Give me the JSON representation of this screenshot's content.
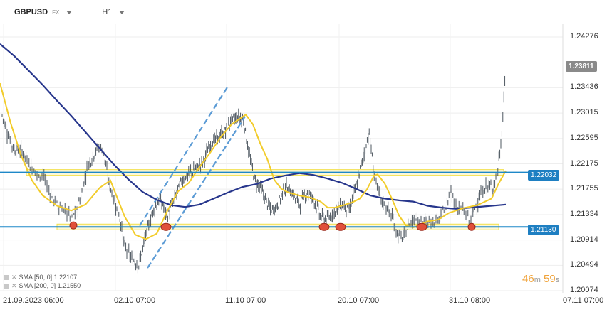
{
  "header": {
    "symbol": "GBPUSD",
    "instrument_type": "FX",
    "timeframe": "H1"
  },
  "y_axis_labels": [
    "1.24276",
    "1.23436",
    "1.23015",
    "1.22595",
    "1.22175",
    "1.21755",
    "1.21334",
    "1.20914",
    "1.20494",
    "1.20074"
  ],
  "x_axis_labels": [
    "21.09.2023  06:00",
    "02.10  07:00",
    "11.10  07:00",
    "20.10  07:00",
    "31.10  08:00",
    "07.11  07:00"
  ],
  "price_tags": {
    "current": "1.23811",
    "upper_level": "1.22032",
    "lower_level": "1.21130"
  },
  "legend": {
    "sma50": "SMA  [50,  0]  1.22107",
    "sma200": "SMA  [200,  0]  1.21550"
  },
  "countdown": {
    "minutes": "46",
    "m": "m",
    "seconds": "59",
    "s": "s"
  },
  "colors": {
    "candles": "#3c4650",
    "sma50": "#f2cc2b",
    "sma200": "#27368c",
    "level_lines": "#1e88c8",
    "zones": "#f2e04a",
    "channel": "#5b9bd5",
    "markers": "#e0503a"
  },
  "chart_data": {
    "type": "line",
    "xlabel": "",
    "ylabel": "",
    "ylim": [
      1.20074,
      1.24486
    ],
    "current_price": 1.23811,
    "horizontal_levels": [
      1.22032,
      1.2113
    ],
    "series": [
      {
        "name": "SMA [50, 0]",
        "last_value": 1.22107,
        "points": [
          [
            0,
            1.2351
          ],
          [
            15,
            1.2285
          ],
          [
            30,
            1.223
          ],
          [
            45,
            1.219
          ],
          [
            60,
            1.2165
          ],
          [
            80,
            1.2148
          ],
          [
            100,
            1.214
          ],
          [
            120,
            1.215
          ],
          [
            140,
            1.2178
          ],
          [
            155,
            1.219
          ],
          [
            165,
            1.216
          ],
          [
            175,
            1.213
          ],
          [
            190,
            1.21
          ],
          [
            205,
            1.2093
          ],
          [
            220,
            1.2102
          ],
          [
            235,
            1.214
          ],
          [
            250,
            1.2172
          ],
          [
            265,
            1.2186
          ],
          [
            280,
            1.2212
          ],
          [
            295,
            1.2236
          ],
          [
            310,
            1.2262
          ],
          [
            325,
            1.2283
          ],
          [
            345,
            1.2299
          ],
          [
            355,
            1.2283
          ],
          [
            365,
            1.2252
          ],
          [
            375,
            1.2226
          ],
          [
            385,
            1.2191
          ],
          [
            395,
            1.2176
          ],
          [
            405,
            1.217
          ],
          [
            420,
            1.2165
          ],
          [
            435,
            1.2162
          ],
          [
            450,
            1.2155
          ],
          [
            460,
            1.2145
          ],
          [
            470,
            1.2145
          ],
          [
            485,
            1.215
          ],
          [
            495,
            1.2154
          ],
          [
            505,
            1.216
          ],
          [
            515,
            1.2175
          ],
          [
            525,
            1.2198
          ],
          [
            530,
            1.22
          ],
          [
            540,
            1.2185
          ],
          [
            550,
            1.216
          ],
          [
            560,
            1.2132
          ],
          [
            570,
            1.2115
          ],
          [
            580,
            1.2112
          ],
          [
            590,
            1.2117
          ],
          [
            600,
            1.2122
          ],
          [
            615,
            1.2125
          ],
          [
            630,
            1.2136
          ],
          [
            650,
            1.2144
          ],
          [
            670,
            1.2149
          ],
          [
            690,
            1.216
          ],
          [
            700,
            1.2185
          ],
          [
            710,
            1.2206
          ]
        ]
      },
      {
        "name": "SMA [200, 0]",
        "last_value": 1.2155,
        "points": [
          [
            0,
            1.2416
          ],
          [
            20,
            1.2396
          ],
          [
            40,
            1.2372
          ],
          [
            60,
            1.2348
          ],
          [
            80,
            1.2322
          ],
          [
            100,
            1.2297
          ],
          [
            120,
            1.227
          ],
          [
            140,
            1.2243
          ],
          [
            160,
            1.2216
          ],
          [
            180,
            1.2192
          ],
          [
            200,
            1.2171
          ],
          [
            220,
            1.2158
          ],
          [
            240,
            1.2149
          ],
          [
            260,
            1.2146
          ],
          [
            280,
            1.215
          ],
          [
            300,
            1.216
          ],
          [
            320,
            1.217
          ],
          [
            340,
            1.2179
          ],
          [
            360,
            1.2184
          ],
          [
            380,
            1.2193
          ],
          [
            400,
            1.2198
          ],
          [
            420,
            1.2202
          ],
          [
            440,
            1.2199
          ],
          [
            460,
            1.2193
          ],
          [
            480,
            1.2186
          ],
          [
            500,
            1.2176
          ],
          [
            520,
            1.2165
          ],
          [
            540,
            1.216
          ],
          [
            560,
            1.2157
          ],
          [
            580,
            1.2155
          ],
          [
            600,
            1.2148
          ],
          [
            620,
            1.2145
          ],
          [
            640,
            1.2143
          ],
          [
            660,
            1.2145
          ],
          [
            680,
            1.2147
          ],
          [
            700,
            1.2149
          ],
          [
            710,
            1.215
          ]
        ]
      },
      {
        "name": "price",
        "points": [
          [
            0,
            1.231
          ],
          [
            10,
            1.227
          ],
          [
            20,
            1.224
          ],
          [
            30,
            1.224
          ],
          [
            40,
            1.222
          ],
          [
            50,
            1.22
          ],
          [
            60,
            1.22
          ],
          [
            70,
            1.217
          ],
          [
            80,
            1.215
          ],
          [
            90,
            1.214
          ],
          [
            100,
            1.213
          ],
          [
            108,
            1.214
          ],
          [
            115,
            1.217
          ],
          [
            122,
            1.221
          ],
          [
            130,
            1.223
          ],
          [
            138,
            1.2245
          ],
          [
            145,
            1.224
          ],
          [
            152,
            1.219
          ],
          [
            160,
            1.216
          ],
          [
            168,
            1.213
          ],
          [
            175,
            1.208
          ],
          [
            185,
            1.206
          ],
          [
            195,
            1.205
          ],
          [
            205,
            1.21
          ],
          [
            215,
            1.214
          ],
          [
            225,
            1.216
          ],
          [
            235,
            1.213
          ],
          [
            245,
            1.216
          ],
          [
            255,
            1.219
          ],
          [
            265,
            1.22
          ],
          [
            275,
            1.221
          ],
          [
            285,
            1.222
          ],
          [
            295,
            1.225
          ],
          [
            305,
            1.226
          ],
          [
            315,
            1.227
          ],
          [
            325,
            1.229
          ],
          [
            335,
            1.2295
          ],
          [
            342,
            1.229
          ],
          [
            350,
            1.223
          ],
          [
            358,
            1.219
          ],
          [
            365,
            1.218
          ],
          [
            372,
            1.216
          ],
          [
            380,
            1.214
          ],
          [
            390,
            1.215
          ],
          [
            400,
            1.218
          ],
          [
            410,
            1.217
          ],
          [
            420,
            1.215
          ],
          [
            430,
            1.217
          ],
          [
            440,
            1.216
          ],
          [
            450,
            1.213
          ],
          [
            460,
            1.2125
          ],
          [
            470,
            1.214
          ],
          [
            480,
            1.215
          ],
          [
            490,
            1.214
          ],
          [
            500,
            1.218
          ],
          [
            510,
            1.223
          ],
          [
            518,
            1.227
          ],
          [
            525,
            1.22
          ],
          [
            533,
            1.216
          ],
          [
            540,
            1.215
          ],
          [
            550,
            1.213
          ],
          [
            558,
            1.21
          ],
          [
            566,
            1.2095
          ],
          [
            575,
            1.212
          ],
          [
            585,
            1.213
          ],
          [
            595,
            1.212
          ],
          [
            605,
            1.212
          ],
          [
            615,
            1.213
          ],
          [
            625,
            1.214
          ],
          [
            632,
            1.217
          ],
          [
            640,
            1.215
          ],
          [
            650,
            1.214
          ],
          [
            660,
            1.212
          ],
          [
            668,
            1.215
          ],
          [
            676,
            1.217
          ],
          [
            684,
            1.218
          ],
          [
            692,
            1.218
          ],
          [
            698,
            1.22
          ],
          [
            704,
            1.226
          ],
          [
            708,
            1.2345
          ],
          [
            710,
            1.2381
          ]
        ]
      }
    ]
  }
}
